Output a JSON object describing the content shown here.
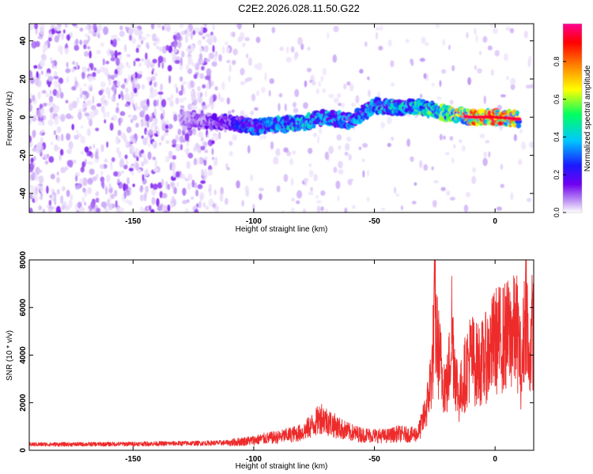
{
  "figure": {
    "title": "C2E2.2026.028.11.50.G22"
  },
  "chart_data": [
    {
      "type": "heatmap",
      "title": "C2E2.2026.028.11.50.G22",
      "xlabel": "Height of straight line (km)",
      "ylabel": "Frequency (Hz)",
      "xlim": [
        -193,
        16
      ],
      "ylim": [
        -50,
        49
      ],
      "xticks": [
        -150,
        -100,
        -50,
        0
      ],
      "xtick_labels": [
        "-150",
        "-100",
        "-50",
        "0"
      ],
      "yticks": [
        -40,
        -20,
        0,
        20,
        40
      ],
      "ytick_labels": [
        "-40",
        "-20",
        "0",
        "20",
        "40"
      ],
      "colorbar": {
        "label": "Normalized spectral amplitude",
        "range": [
          0,
          1
        ],
        "ticks": [
          0,
          0.2,
          0.4,
          0.6,
          0.8
        ],
        "tick_labels": [
          "0.0",
          "0.2",
          "0.4",
          "0.6",
          "0.8"
        ],
        "colormap": [
          "#ffffff",
          "#c9a8f5",
          "#7000f0",
          "#1a1aff",
          "#00c8ff",
          "#00ff60",
          "#ffff00",
          "#ff8000",
          "#ff0000",
          "#ff0090"
        ]
      },
      "grid": false,
      "signal_track": [
        {
          "x": -130,
          "y": 0,
          "amp": 0.15
        },
        {
          "x": -120,
          "y": -2,
          "amp": 0.2
        },
        {
          "x": -110,
          "y": -3,
          "amp": 0.3
        },
        {
          "x": -100,
          "y": -5,
          "amp": 0.4
        },
        {
          "x": -90,
          "y": -4,
          "amp": 0.45
        },
        {
          "x": -80,
          "y": -3,
          "amp": 0.5
        },
        {
          "x": -70,
          "y": 0,
          "amp": 0.45
        },
        {
          "x": -60,
          "y": -2,
          "amp": 0.4
        },
        {
          "x": -50,
          "y": 6,
          "amp": 0.45
        },
        {
          "x": -40,
          "y": 5,
          "amp": 0.5
        },
        {
          "x": -30,
          "y": 5,
          "amp": 0.55
        },
        {
          "x": -20,
          "y": 2,
          "amp": 0.6
        },
        {
          "x": -10,
          "y": 0,
          "amp": 0.85
        },
        {
          "x": 0,
          "y": 0,
          "amp": 0.9
        },
        {
          "x": 10,
          "y": -1,
          "amp": 0.75
        }
      ]
    },
    {
      "type": "line",
      "xlabel": "Height of straight line (km)",
      "ylabel": "SNR (10 * v/v)",
      "xlim": [
        -193,
        16
      ],
      "ylim": [
        0,
        8000
      ],
      "xticks": [
        -150,
        -100,
        -50,
        0
      ],
      "xtick_labels": [
        "-150",
        "-100",
        "-50",
        "0"
      ],
      "yticks": [
        0,
        2000,
        4000,
        6000,
        8000
      ],
      "ytick_labels": [
        "0",
        "2000",
        "4000",
        "6000",
        "8000"
      ],
      "grid": false,
      "series": [
        {
          "color": "#ee2b2b",
          "x": [
            -193,
            -180,
            -160,
            -140,
            -120,
            -110,
            -100,
            -95,
            -90,
            -85,
            -80,
            -75,
            -72,
            -70,
            -65,
            -60,
            -55,
            -50,
            -45,
            -40,
            -35,
            -32,
            -30,
            -28,
            -26,
            -25,
            -24,
            -22,
            -20,
            -19,
            -18,
            -17,
            -15,
            -12,
            -10,
            -8,
            -5,
            -2,
            0,
            3,
            5,
            7,
            9,
            10,
            11,
            12,
            13,
            14,
            15,
            16
          ],
          "y": [
            250,
            250,
            260,
            280,
            300,
            320,
            420,
            500,
            550,
            650,
            750,
            1100,
            1400,
            1250,
            950,
            750,
            650,
            620,
            600,
            700,
            650,
            700,
            1200,
            2000,
            3500,
            6000,
            4500,
            3200,
            2600,
            3500,
            5400,
            3800,
            2200,
            3400,
            4000,
            3600,
            3700,
            4200,
            4600,
            4700,
            4800,
            4900,
            5000,
            4400,
            3000,
            5200,
            6600,
            3200,
            5000,
            5000
          ]
        }
      ]
    }
  ]
}
